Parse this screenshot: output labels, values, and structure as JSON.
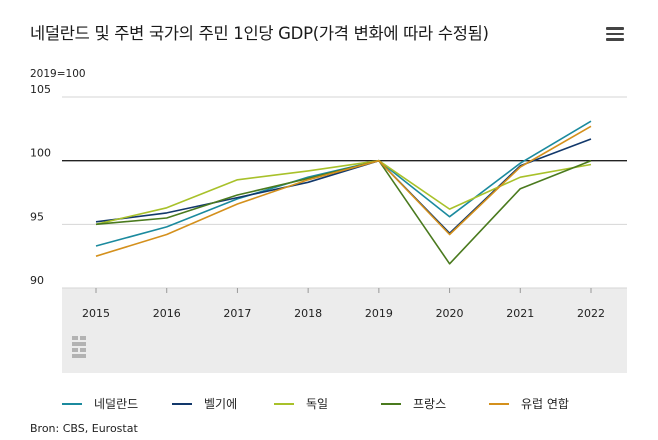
{
  "header": {
    "title": "네덜란드 및 주변 국가의 주민 1인당 GDP(가격 변화에 따라 수정됨)",
    "menu_icon": "hamburger-menu-icon"
  },
  "axis_note": "2019=100",
  "source": "Bron: CBS, Eurostat",
  "chart_data": {
    "type": "line",
    "title": "네덜란드 및 주변 국가의 주민 1인당 GDP(가격 변화에 따라 수정됨)",
    "ylabel": "2019=100",
    "xlabel": "",
    "x": [
      "2015",
      "2016",
      "2017",
      "2018",
      "2019",
      "2020",
      "2021",
      "2022"
    ],
    "ylim": [
      90,
      105
    ],
    "yticks": [
      90,
      95,
      100,
      105
    ],
    "reference_line": 100,
    "grid": "horizontal",
    "legend_position": "bottom",
    "series": [
      {
        "name": "네덜란드",
        "color": "#1b8a9e",
        "values": [
          93.3,
          94.8,
          97.0,
          98.7,
          100,
          95.6,
          99.8,
          103.1
        ]
      },
      {
        "name": "벨기에",
        "color": "#12386b",
        "values": [
          95.2,
          95.9,
          97.1,
          98.3,
          100,
          94.3,
          99.6,
          101.7
        ]
      },
      {
        "name": "독일",
        "color": "#a8c12a",
        "values": [
          95.0,
          96.3,
          98.5,
          99.2,
          100,
          96.2,
          98.7,
          99.7
        ]
      },
      {
        "name": "프랑스",
        "color": "#4a7a1e",
        "values": [
          95.0,
          95.5,
          97.3,
          98.6,
          100,
          91.9,
          97.8,
          100.0
        ]
      },
      {
        "name": "유럽 연합",
        "color": "#d4901c",
        "values": [
          92.5,
          94.2,
          96.6,
          98.5,
          100,
          94.2,
          99.5,
          102.7
        ]
      }
    ]
  }
}
